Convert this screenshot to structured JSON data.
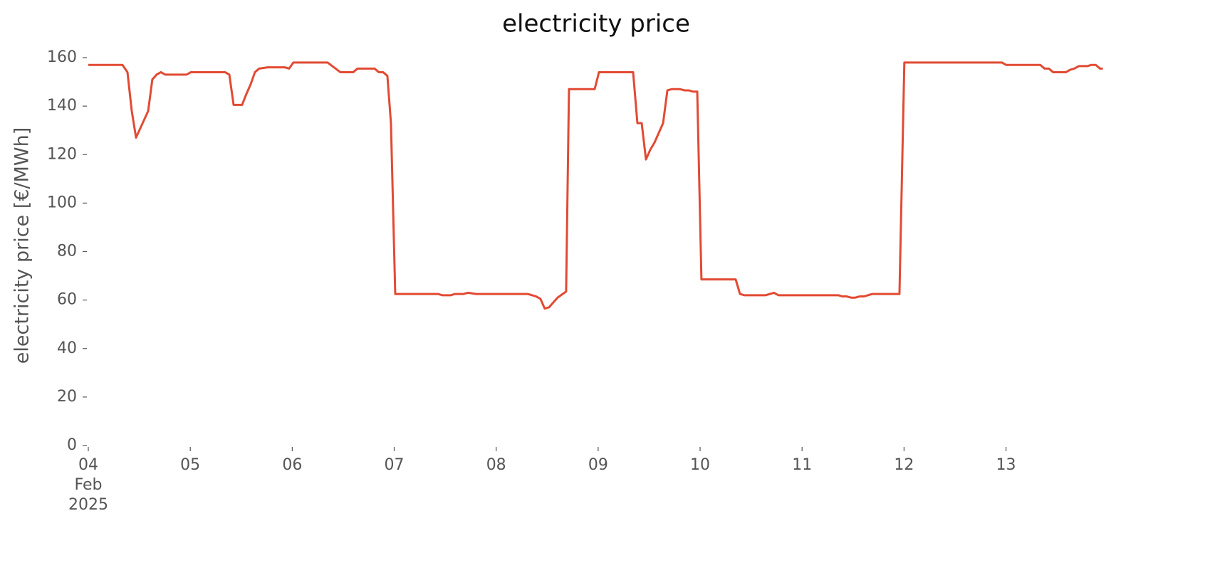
{
  "chart_data": {
    "type": "line",
    "title": "electricity price",
    "y_label": "electricity price [€/MWh]",
    "series": [
      {
        "name": "electricity price",
        "color": "#e24a33",
        "x": [
          4.0,
          4.335,
          4.384,
          4.426,
          4.468,
          4.587,
          4.628,
          4.67,
          4.712,
          4.754,
          4.964,
          5.006,
          5.341,
          5.383,
          5.425,
          5.508,
          5.55,
          5.592,
          5.634,
          5.676,
          5.76,
          5.927,
          5.969,
          6.011,
          6.346,
          6.472,
          6.598,
          6.64,
          6.807,
          6.849,
          6.891,
          6.933,
          6.968,
          7.01,
          7.429,
          7.471,
          7.555,
          7.597,
          7.68,
          7.722,
          7.806,
          8.309,
          8.392,
          8.434,
          8.476,
          8.518,
          8.602,
          8.686,
          8.714,
          8.966,
          9.008,
          9.343,
          9.385,
          9.427,
          9.469,
          9.511,
          9.553,
          9.595,
          9.637,
          9.679,
          9.721,
          9.804,
          9.846,
          9.888,
          9.93,
          9.972,
          10.013,
          10.349,
          10.391,
          10.433,
          10.642,
          10.725,
          10.768,
          11.354,
          11.396,
          11.438,
          11.48,
          11.522,
          11.564,
          11.606,
          11.689,
          11.815,
          11.955,
          12.003,
          12.959,
          13.001,
          13.336,
          13.378,
          13.42,
          13.462,
          13.588,
          13.629,
          13.671,
          13.713,
          13.797,
          13.838,
          13.88,
          13.922,
          13.95
        ],
        "values": [
          157,
          157,
          154,
          138,
          127,
          138,
          151,
          153,
          154,
          153,
          153,
          154,
          154,
          153,
          140.5,
          140.5,
          145,
          149,
          154,
          155.5,
          156,
          156,
          155.5,
          158,
          158,
          154,
          154,
          155.5,
          155.5,
          154,
          154,
          152.5,
          133,
          62.5,
          62.5,
          62,
          62,
          62.5,
          62.5,
          63,
          62.5,
          62.5,
          61.5,
          60.5,
          56.5,
          57,
          61,
          63.5,
          147,
          147,
          154,
          154,
          133,
          133,
          118,
          122,
          125,
          129,
          133,
          146.5,
          147,
          147,
          146.5,
          146.5,
          146,
          146,
          68.5,
          68.5,
          62.5,
          62,
          62,
          63,
          62,
          62,
          61.5,
          61.5,
          61,
          61,
          61.5,
          61.5,
          62.5,
          62.5,
          62.5,
          158,
          158,
          157,
          157,
          155.5,
          155.5,
          154,
          154,
          155,
          155.5,
          156.5,
          156.5,
          157,
          157,
          155.5,
          155.5
        ]
      }
    ],
    "xlim": [
      4,
      13.96
    ],
    "xticks": [
      {
        "value": 4,
        "label": "04\nFeb\n2025"
      },
      {
        "value": 5,
        "label": "05"
      },
      {
        "value": 6,
        "label": "06"
      },
      {
        "value": 7,
        "label": "07"
      },
      {
        "value": 8,
        "label": "08"
      },
      {
        "value": 9,
        "label": "09"
      },
      {
        "value": 10,
        "label": "10"
      },
      {
        "value": 11,
        "label": "11"
      },
      {
        "value": 12,
        "label": "12"
      },
      {
        "value": 13,
        "label": "13"
      }
    ],
    "ylim": [
      0,
      160
    ],
    "yticks": [
      0,
      20,
      40,
      60,
      80,
      100,
      120,
      140,
      160
    ],
    "grid": false
  }
}
